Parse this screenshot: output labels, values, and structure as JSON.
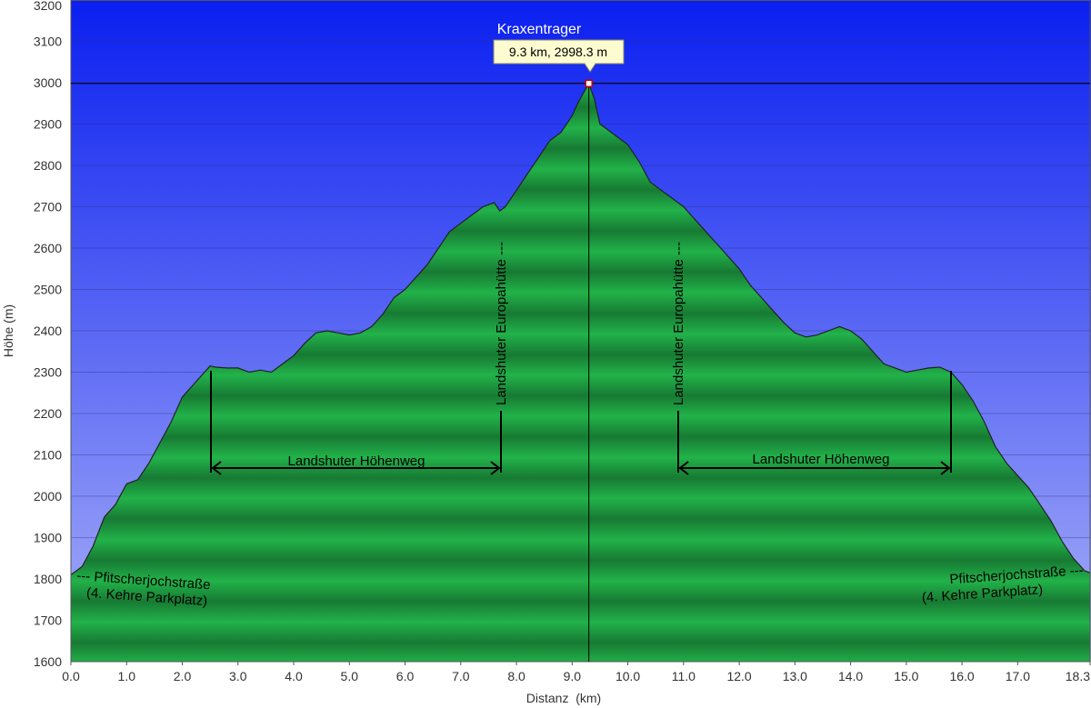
{
  "chart_data": {
    "type": "area",
    "xlabel": "Distanz  (km)",
    "ylabel": "Höhe (m)",
    "xlim": [
      0.0,
      18.3
    ],
    "ylim": [
      1600,
      3200
    ],
    "x_ticks": [
      "0.0",
      "1.0",
      "2.0",
      "3.0",
      "4.0",
      "5.0",
      "6.0",
      "7.0",
      "8.0",
      "9.0",
      "10.0",
      "11.0",
      "12.0",
      "13.0",
      "14.0",
      "15.0",
      "16.0",
      "17.0",
      "18.3"
    ],
    "y_ticks": [
      "1600",
      "1700",
      "1800",
      "1900",
      "2000",
      "2100",
      "2200",
      "2300",
      "2400",
      "2500",
      "2600",
      "2700",
      "2800",
      "2900",
      "3000",
      "3100",
      "3200"
    ],
    "grid": true,
    "colors": {
      "sky_top": "#0a1ff0",
      "sky_bottom": "#a9b0f8",
      "fill_light": "#22b24a",
      "fill_dark": "#177a33",
      "outline": "#222222"
    },
    "series": [
      {
        "x": [
          0.0,
          0.2,
          0.4,
          0.6,
          0.8,
          1.0,
          1.2,
          1.4,
          1.6,
          1.8,
          2.0,
          2.2,
          2.4,
          2.5,
          2.6,
          2.8,
          3.0,
          3.2,
          3.4,
          3.6,
          3.8,
          4.0,
          4.2,
          4.4,
          4.6,
          4.8,
          5.0,
          5.2,
          5.4,
          5.6,
          5.8,
          6.0,
          6.2,
          6.4,
          6.6,
          6.8,
          7.0,
          7.2,
          7.4,
          7.6,
          7.7,
          7.8,
          7.9,
          8.0,
          8.2,
          8.4,
          8.6,
          8.8,
          9.0,
          9.1,
          9.2,
          9.3,
          9.4,
          9.5,
          9.6,
          9.8,
          10.0,
          10.2,
          10.4,
          10.6,
          10.8,
          10.9,
          11.0,
          11.2,
          11.4,
          11.6,
          11.8,
          12.0,
          12.2,
          12.4,
          12.6,
          12.8,
          13.0,
          13.2,
          13.4,
          13.6,
          13.8,
          14.0,
          14.2,
          14.4,
          14.6,
          14.8,
          15.0,
          15.2,
          15.4,
          15.6,
          15.8,
          16.0,
          16.2,
          16.4,
          16.6,
          16.8,
          17.0,
          17.2,
          17.4,
          17.6,
          17.8,
          18.0,
          18.2,
          18.3
        ],
        "y": [
          1810,
          1830,
          1880,
          1950,
          1980,
          2030,
          2040,
          2080,
          2130,
          2180,
          2240,
          2270,
          2300,
          2315,
          2312,
          2310,
          2310,
          2300,
          2305,
          2300,
          2320,
          2340,
          2370,
          2395,
          2400,
          2395,
          2390,
          2395,
          2410,
          2440,
          2480,
          2500,
          2530,
          2560,
          2600,
          2640,
          2660,
          2680,
          2700,
          2710,
          2690,
          2700,
          2720,
          2740,
          2780,
          2820,
          2860,
          2880,
          2920,
          2950,
          2975,
          2998,
          2960,
          2900,
          2890,
          2870,
          2850,
          2810,
          2760,
          2740,
          2720,
          2710,
          2700,
          2670,
          2640,
          2610,
          2580,
          2550,
          2510,
          2480,
          2450,
          2420,
          2395,
          2385,
          2390,
          2400,
          2410,
          2400,
          2380,
          2350,
          2320,
          2310,
          2300,
          2305,
          2310,
          2312,
          2300,
          2270,
          2230,
          2180,
          2120,
          2080,
          2050,
          2020,
          1980,
          1940,
          1890,
          1850,
          1820,
          1815
        ]
      }
    ],
    "peak": {
      "name": "Kraxentrager",
      "x": 9.3,
      "y": 2998.3,
      "label": "9.3 km, 2998.3 m"
    },
    "annotations": {
      "hut_left": "Landshuter Europahütte ---",
      "hut_right": "Landshuter Europahütte ---",
      "trail_left": "Landshuter Höhenweg",
      "trail_right": "Landshuter Höhenweg",
      "start_line1": "--- Pfitscherjochstraße",
      "start_line2": "(4. Kehre Parkplatz)",
      "end_line1": "Pfitscherjochstraße ---",
      "end_line2": "(4. Kehre Parkplatz)"
    }
  }
}
